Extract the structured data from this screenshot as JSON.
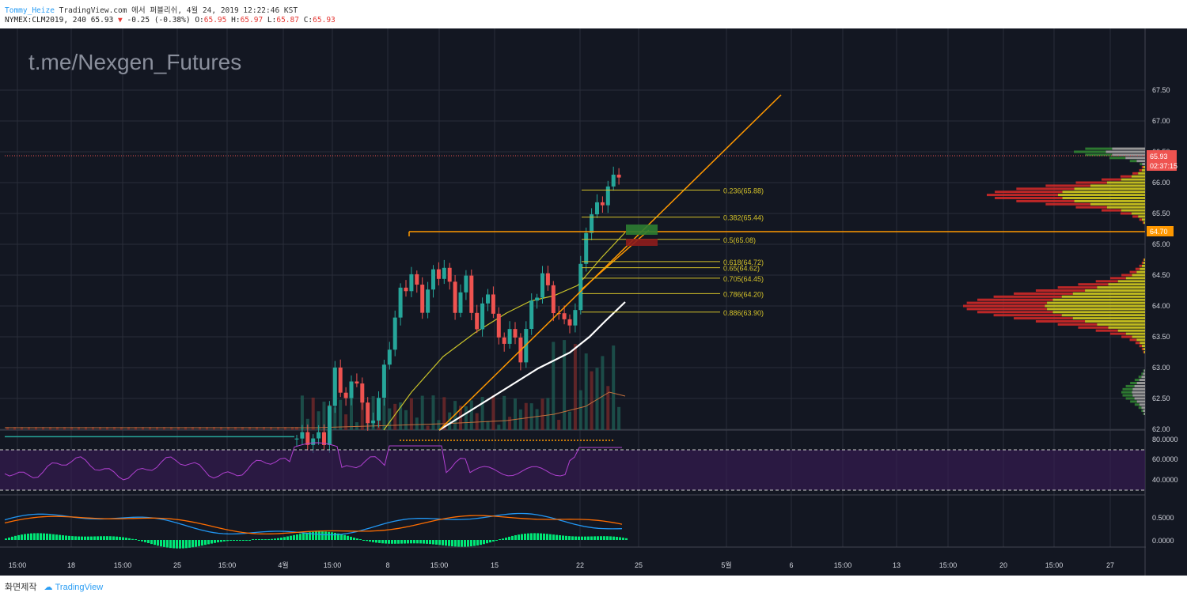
{
  "header": {
    "author": "Tommy_Heize",
    "published": "TradingView.com 에서 퍼블리쉬, 4월 24, 2019 12:22:46 KST",
    "symbol": "NYMEX:CLM2019, 240",
    "last": "65.93",
    "change_arrow": "▼",
    "change": "-0.25 (-0.38%)",
    "ohlc": [
      {
        "label": "O:",
        "value": "65.95"
      },
      {
        "label": "H:",
        "value": "65.97"
      },
      {
        "label": "L:",
        "value": "65.87"
      },
      {
        "label": "C:",
        "value": "65.93"
      }
    ]
  },
  "watermark": "t.me/Nexgen_Futures",
  "colors": {
    "background": "#131722",
    "grid": "#2a2e39",
    "up": "#26a69a",
    "down": "#ef5350",
    "fib": "#d4c22a",
    "trend": "#ff9800",
    "ma_slow": "#ffffff",
    "ma_fast": "#c8c22a",
    "rsi": "#9c27b0",
    "macd": "#2196f3",
    "signal": "#ff6d00",
    "hist": "#00e676",
    "vp_up": "#c9c21f",
    "vp_down": "#c62828"
  },
  "price_axis": {
    "ticks": [
      "67.50",
      "67.00",
      "66.50",
      "66.00",
      "65.50",
      "65.00",
      "64.50",
      "64.00",
      "63.50",
      "63.00",
      "62.50",
      "62.00"
    ],
    "current_price_label": "65.93",
    "countdown_label": "02:37:15",
    "level_label": "64.70"
  },
  "rsi_axis": {
    "ticks": [
      "80.0000",
      "60.0000",
      "40.0000"
    ]
  },
  "macd_axis": {
    "ticks": [
      "0.5000",
      "0.0000"
    ]
  },
  "time_axis": [
    "15:00",
    "18",
    "15:00",
    "25",
    "15:00",
    "4월",
    "15:00",
    "8",
    "15:00",
    "15",
    "22",
    "25",
    "5월",
    "6",
    "15:00",
    "13",
    "15:00",
    "20",
    "15:00",
    "27"
  ],
  "fib_levels": [
    {
      "label": "0.236(65.88)",
      "price": 65.88
    },
    {
      "label": "0.382(65.44)",
      "price": 65.44
    },
    {
      "label": "0.5(65.08)",
      "price": 65.08
    },
    {
      "label": "0.618(64.72)",
      "price": 64.72
    },
    {
      "label": "0.65(64.62)",
      "price": 64.62
    },
    {
      "label": "0.705(64.45)",
      "price": 64.45
    },
    {
      "label": "0.786(64.20)",
      "price": 64.2
    },
    {
      "label": "0.886(63.90)",
      "price": 63.9
    }
  ],
  "footer": {
    "label": "화면제작",
    "logo": "TradingView"
  }
}
